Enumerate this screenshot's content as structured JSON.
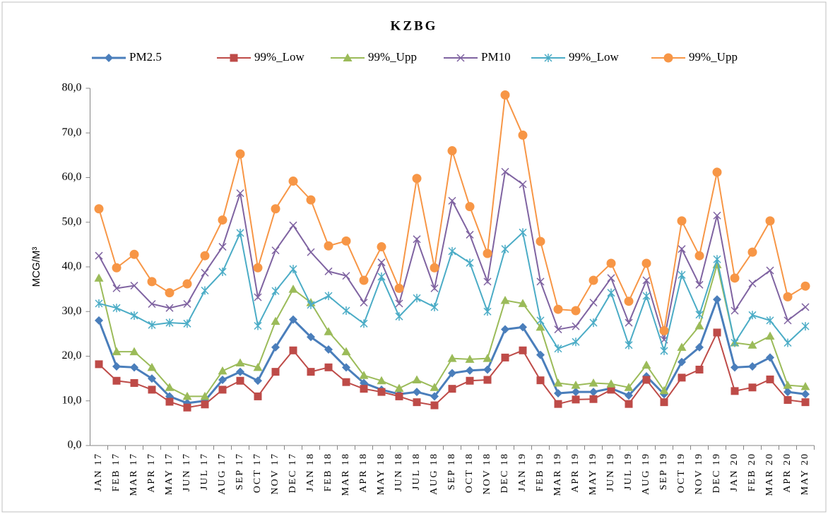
{
  "chart_data": {
    "type": "line",
    "title": "KZBG",
    "y_label": "MCG/M³",
    "categories": [
      "JAN 17",
      "FEB 17",
      "MAR 17",
      "APR 17",
      "MAY 17",
      "JUN 17",
      "JUL 17",
      "AUG 17",
      "SEP 17",
      "OCT 17",
      "NOV 17",
      "DEC 17",
      "JAN 18",
      "FEB 18",
      "MAR 18",
      "APR 18",
      "MAY 18",
      "JUN 18",
      "JUL 18",
      "AUG 18",
      "SEP 18",
      "OCT 18",
      "NOV 18",
      "DEC 18",
      "JAN 19",
      "FEB 19",
      "MAR 19",
      "APR 19",
      "MAY 19",
      "JUN 19",
      "JUL 19",
      "AUG 19",
      "SEP 19",
      "OCT 19",
      "NOV 19",
      "DEC 19",
      "JAN 20",
      "FEB 20",
      "MAR 20",
      "APR 20",
      "MAY 20"
    ],
    "series": [
      {
        "name": "PM2.5",
        "color": "#4a7ebb",
        "marker": "diamond",
        "values": [
          28,
          17.7,
          17.5,
          15,
          11,
          9.5,
          10,
          14.7,
          16.5,
          14.5,
          22,
          28.2,
          24.3,
          21.5,
          17.5,
          14,
          12.5,
          11.5,
          12,
          11,
          16.2,
          16.8,
          17,
          26,
          26.5,
          20.3,
          11.7,
          12,
          12,
          12.8,
          11.2,
          15.5,
          11.5,
          18.7,
          22,
          32.7,
          17.5,
          17.7,
          19.7,
          12,
          11.5
        ]
      },
      {
        "name": "99%_Low",
        "color": "#be4b48",
        "marker": "square",
        "values": [
          18.2,
          14.5,
          14,
          12.5,
          9.8,
          8.5,
          9.2,
          12.5,
          14.5,
          11,
          16.5,
          21.3,
          16.5,
          17.5,
          14.2,
          12.7,
          12,
          11,
          9.7,
          9,
          12.7,
          14.5,
          14.7,
          19.7,
          21.3,
          14.6,
          9.3,
          10.3,
          10.4,
          12.5,
          9.3,
          14.7,
          9.7,
          15.2,
          17,
          25.3,
          12.2,
          13,
          14.8,
          10.2,
          9.7
        ]
      },
      {
        "name": "99%_Upp",
        "color": "#9bbb59",
        "marker": "triangle",
        "values": [
          37.5,
          21,
          21,
          17.5,
          13,
          11,
          11,
          16.7,
          18.5,
          17.5,
          27.8,
          35,
          32,
          25.5,
          21,
          15.7,
          14.5,
          12.8,
          14.7,
          13,
          19.5,
          19.3,
          19.5,
          32.5,
          31.8,
          26.5,
          14,
          13.5,
          14,
          13.8,
          13,
          18,
          12.3,
          22,
          26.8,
          40.5,
          23,
          22.5,
          24.5,
          13.5,
          13.2
        ]
      },
      {
        "name": "PM10",
        "color": "#7f63a1",
        "marker": "x",
        "values": [
          42.5,
          35.2,
          35.8,
          31.7,
          30.8,
          31.7,
          38.7,
          44.5,
          56.5,
          33.2,
          43.7,
          49.3,
          43.3,
          39,
          38,
          32,
          41,
          31.8,
          46.2,
          35.2,
          54.8,
          47.2,
          36.7,
          61.3,
          58.5,
          36.7,
          26,
          26.7,
          32,
          37.5,
          27.5,
          37,
          23.7,
          44,
          36,
          51.5,
          30.2,
          36.3,
          39.2,
          28,
          31
        ]
      },
      {
        "name": "99%_Low",
        "color": "#4bacc6",
        "marker": "asterisk",
        "values": [
          31.8,
          30.8,
          29.1,
          27,
          27.5,
          27.3,
          34.7,
          38.9,
          47.6,
          26.8,
          34.6,
          39.5,
          31.5,
          33.5,
          30.2,
          27.3,
          37.8,
          28.9,
          33,
          31,
          43.5,
          40.9,
          30,
          44,
          47.7,
          28,
          21.7,
          23.2,
          27.5,
          34.2,
          22.5,
          33.5,
          21.2,
          38.2,
          29.3,
          41.7,
          23,
          29.2,
          28,
          23,
          26.7
        ]
      },
      {
        "name": "99%_Upp",
        "color": "#f79646",
        "marker": "circle",
        "values": [
          53,
          39.8,
          42.8,
          36.7,
          34.2,
          36.2,
          42.5,
          50.5,
          65.3,
          39.8,
          53,
          59.2,
          55,
          44.7,
          45.8,
          37,
          44.5,
          35.2,
          59.8,
          39.8,
          66,
          53.5,
          43,
          78.5,
          69.5,
          45.7,
          30.5,
          30.2,
          37,
          40.8,
          32.3,
          40.8,
          25.7,
          50.3,
          42.5,
          61.2,
          37.5,
          43.3,
          50.3,
          33.3,
          35.7
        ]
      }
    ],
    "ylim": [
      0,
      80
    ],
    "yticks": [
      {
        "value": 0,
        "label": "0,0"
      },
      {
        "value": 10,
        "label": "10,0"
      },
      {
        "value": 20,
        "label": "20,0"
      },
      {
        "value": 30,
        "label": "30,0"
      },
      {
        "value": 40,
        "label": "40,0"
      },
      {
        "value": 50,
        "label": "50,0"
      },
      {
        "value": 60,
        "label": "60,0"
      },
      {
        "value": 70,
        "label": "70,0"
      },
      {
        "value": 80,
        "label": "80,0"
      }
    ],
    "grid": false,
    "legend": "top"
  }
}
